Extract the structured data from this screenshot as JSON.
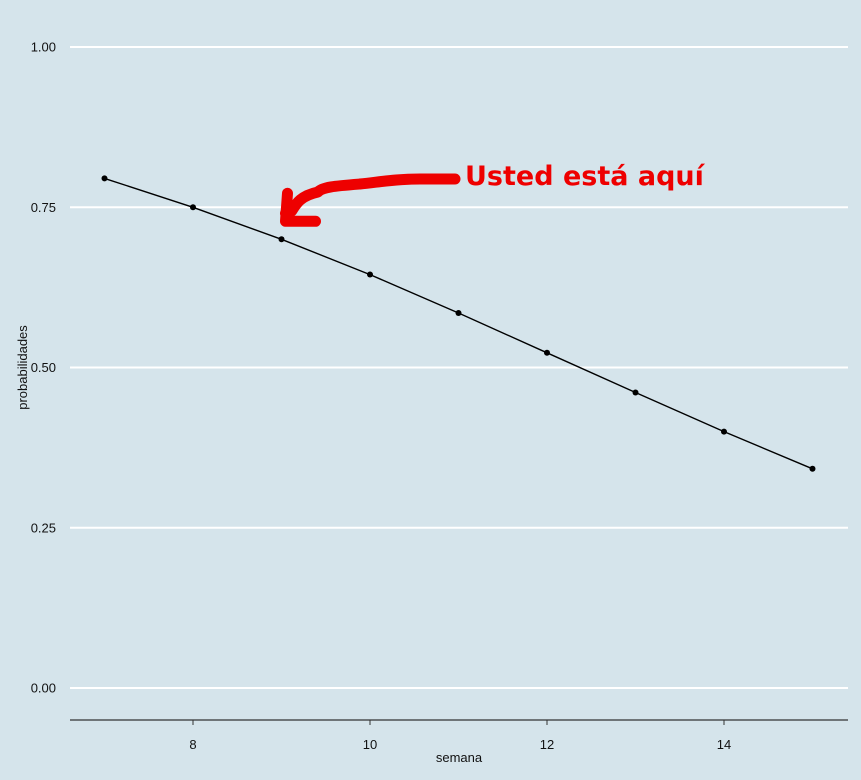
{
  "chart_data": {
    "type": "line",
    "title": "",
    "xlabel": "semana",
    "ylabel": "probabilidades",
    "xlim": [
      6.3,
      15.4
    ],
    "ylim": [
      -0.05,
      1.02
    ],
    "xticks": [
      8,
      10,
      12,
      14
    ],
    "yticks": [
      0.0,
      0.25,
      0.5,
      0.75,
      1.0
    ],
    "ytick_labels": [
      "0.00",
      "0.25",
      "0.50",
      "0.75",
      "1.00"
    ],
    "grid": "horizontal",
    "x": [
      7,
      8,
      9,
      10,
      11,
      12,
      13,
      14,
      15
    ],
    "values": [
      0.795,
      0.75,
      0.7,
      0.645,
      0.585,
      0.523,
      0.461,
      0.4,
      0.342
    ],
    "line_color": "#000000",
    "annotation": {
      "text": "Usted está aquí",
      "color": "#ee0000",
      "points_to": {
        "x": 9,
        "y": 0.7
      }
    }
  },
  "colors": {
    "panel_background": "#d5e4eb",
    "grid": "#ffffff",
    "axis": "#333333",
    "annotation": "#ee0000"
  }
}
